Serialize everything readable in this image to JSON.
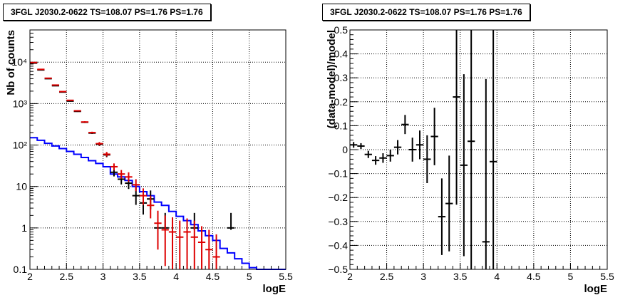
{
  "chart_data": [
    {
      "type": "histogram",
      "title": "3FGL J2030.2-0622 TS=108.07 PS=1.76 PS=1.76",
      "xlabel": "logE",
      "ylabel": "Nb of counts",
      "xlim": [
        2,
        5.5
      ],
      "ylim": [
        0.1,
        60000
      ],
      "yscale": "log",
      "grid": true,
      "x_ticks": [
        "2",
        "2.5",
        "3",
        "3.5",
        "4",
        "4.5",
        "5",
        "5.5"
      ],
      "y_ticks": [
        "0.1",
        "1",
        "10",
        "10²",
        "10³",
        "10⁴"
      ],
      "bin_edges": [
        2.0,
        2.1,
        2.2,
        2.3,
        2.4,
        2.5,
        2.6,
        2.7,
        2.8,
        2.9,
        3.0,
        3.1,
        3.2,
        3.3,
        3.4,
        3.5,
        3.6,
        3.7,
        3.8,
        3.9,
        4.0,
        4.1,
        4.2,
        4.3,
        4.4,
        4.5,
        4.6,
        4.7,
        4.8,
        4.9,
        5.0,
        5.1,
        5.2,
        5.3,
        5.4,
        5.5
      ],
      "series": [
        {
          "color": "#0000ff",
          "kind": "step",
          "values": [
            150,
            130,
            110,
            95,
            82,
            70,
            60,
            50,
            42,
            36,
            30,
            20,
            17,
            14,
            10,
            7.5,
            6,
            4.2,
            3.5,
            2.5,
            1.9,
            1.5,
            1.2,
            0.85,
            0.65,
            0.5,
            0.32,
            0.25,
            0.18,
            0.14,
            0.11,
            0.1,
            0.1,
            0.1,
            0.1
          ]
        },
        {
          "color": "#000000",
          "kind": "points",
          "x": [
            2.05,
            2.15,
            2.25,
            2.35,
            2.45,
            2.55,
            2.65,
            2.75,
            2.85,
            2.95,
            3.05,
            3.15,
            3.25,
            3.35,
            3.45,
            3.55,
            3.65,
            3.75,
            3.85,
            4.25,
            4.75
          ],
          "y": [
            9500,
            6500,
            4000,
            2700,
            1900,
            1150,
            650,
            355,
            195,
            105,
            58,
            22,
            15,
            12,
            6,
            4,
            5,
            1,
            1,
            1,
            1
          ],
          "err_low": [
            9400,
            6420,
            3940,
            2650,
            1860,
            1120,
            630,
            340,
            185,
            95,
            51,
            17.5,
            11.2,
            8.7,
            3.6,
            2.1,
            2.8,
            0.9,
            0.9,
            0.9,
            0.9
          ],
          "err_high": [
            9600,
            6580,
            4060,
            2750,
            1940,
            1180,
            670,
            370,
            205,
            115,
            66,
            27,
            19,
            16,
            9.5,
            6.6,
            8,
            2.3,
            2.3,
            2.3,
            2.3
          ]
        },
        {
          "color": "#dd0000",
          "kind": "points",
          "x": [
            2.05,
            2.15,
            2.25,
            2.35,
            2.45,
            2.55,
            2.65,
            2.75,
            2.85,
            2.95,
            3.05,
            3.15,
            3.25,
            3.35,
            3.45,
            3.55,
            3.65,
            3.75,
            3.85,
            3.95,
            4.05,
            4.15,
            4.25,
            4.35,
            4.45,
            4.55
          ],
          "y": [
            9800,
            6700,
            4100,
            2800,
            1950,
            1200,
            670,
            360,
            200,
            108,
            60,
            30,
            20,
            17,
            11,
            6,
            3.5,
            1.3,
            0.9,
            0.8,
            0.6,
            0.8,
            0.6,
            0.45,
            0.3,
            0.2
          ],
          "err_low": [
            9700,
            6620,
            4040,
            2750,
            1910,
            1170,
            650,
            345,
            190,
            98,
            53,
            24.5,
            15.5,
            12.9,
            7.7,
            3.6,
            1.7,
            0.3,
            0.12,
            0.1,
            0.1,
            0.1,
            0.1,
            0.1,
            0.1,
            0.1
          ],
          "err_high": [
            9900,
            6780,
            4160,
            2850,
            1990,
            1230,
            690,
            375,
            210,
            118,
            68,
            36,
            25,
            22,
            15,
            9,
            6,
            2.6,
            2,
            1.8,
            1.5,
            1.7,
            1.5,
            1.1,
            0.9,
            0.7
          ]
        }
      ]
    },
    {
      "type": "scatter",
      "title": "3FGL J2030.2-0622 TS=108.07 PS=1.76 PS=1.76",
      "xlabel": "logE",
      "ylabel": "(data-model)/model",
      "xlim": [
        2,
        5.5
      ],
      "ylim": [
        -0.5,
        0.5
      ],
      "grid": true,
      "x_ticks": [
        "2",
        "2.5",
        "3",
        "3.5",
        "4",
        "4.5",
        "5",
        "5.5"
      ],
      "y_ticks": [
        "−0.5",
        "−0.4",
        "−0.3",
        "−0.2",
        "−0.1",
        "0",
        "0.1",
        "0.2",
        "0.3",
        "0.4",
        "0.5"
      ],
      "series": [
        {
          "color": "#000000",
          "x": [
            2.05,
            2.15,
            2.25,
            2.35,
            2.45,
            2.55,
            2.65,
            2.75,
            2.85,
            2.95,
            3.05,
            3.15,
            3.25,
            3.35,
            3.45,
            3.55,
            3.65,
            3.85,
            3.95
          ],
          "y": [
            0.02,
            0.015,
            -0.02,
            -0.045,
            -0.035,
            -0.025,
            0.01,
            0.105,
            0.0,
            0.02,
            -0.04,
            0.055,
            -0.28,
            -0.225,
            0.22,
            -0.065,
            0.035,
            -0.385,
            -0.05
          ],
          "err": [
            0.012,
            0.012,
            0.015,
            0.018,
            0.02,
            0.025,
            0.03,
            0.04,
            0.05,
            0.06,
            0.1,
            0.12,
            0.16,
            0.2,
            0.45,
            0.38,
            0.55,
            0.68,
            0.6
          ]
        }
      ]
    }
  ]
}
